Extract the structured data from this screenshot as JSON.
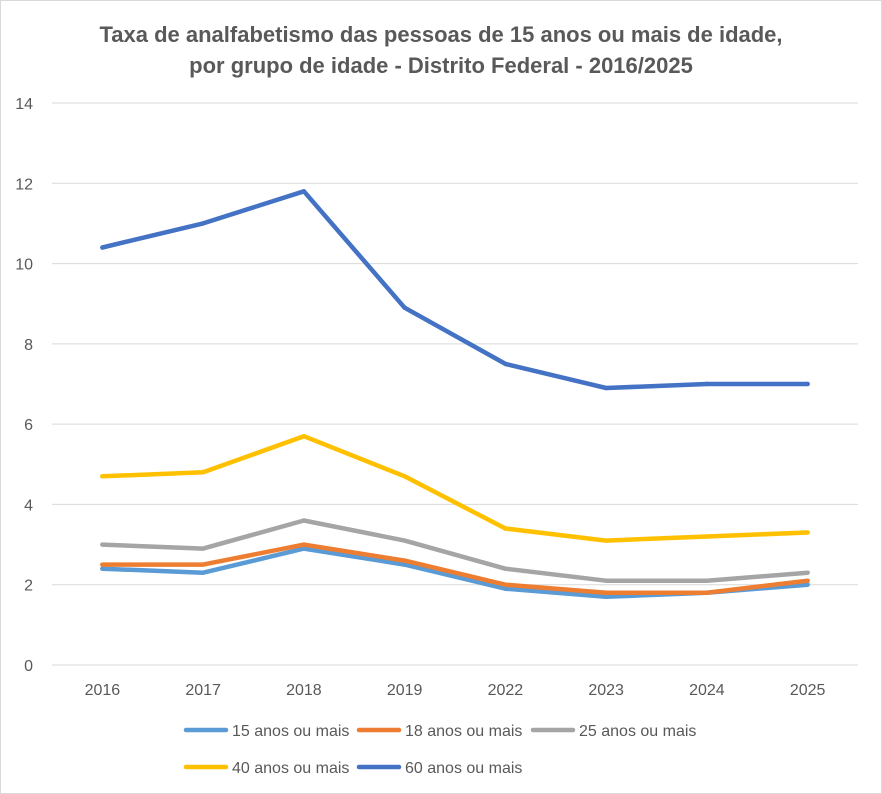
{
  "chart_data": {
    "type": "line",
    "title": "Taxa de analfabetismo das pessoas de 15 anos ou mais de idade,",
    "subtitle": "por grupo de idade - Distrito Federal - 2016/2025",
    "xlabel": "",
    "ylabel": "",
    "categories": [
      "2016",
      "2017",
      "2018",
      "2019",
      "2022",
      "2023",
      "2024",
      "2025"
    ],
    "ylim": [
      0,
      14
    ],
    "yticks": [
      0,
      2,
      4,
      6,
      8,
      10,
      12,
      14
    ],
    "grid": true,
    "legend_position": "bottom",
    "series": [
      {
        "name": "15 anos ou mais",
        "color": "#5b9bd5",
        "values": [
          2.4,
          2.3,
          2.9,
          2.5,
          1.9,
          1.7,
          1.8,
          2.0
        ]
      },
      {
        "name": "18 anos ou mais",
        "color": "#ed7d31",
        "values": [
          2.5,
          2.5,
          3.0,
          2.6,
          2.0,
          1.8,
          1.8,
          2.1
        ]
      },
      {
        "name": "25 anos ou mais",
        "color": "#a5a5a5",
        "values": [
          3.0,
          2.9,
          3.6,
          3.1,
          2.4,
          2.1,
          2.1,
          2.3
        ]
      },
      {
        "name": "40 anos ou mais",
        "color": "#ffc000",
        "values": [
          4.7,
          4.8,
          5.7,
          4.7,
          3.4,
          3.1,
          3.2,
          3.3
        ]
      },
      {
        "name": "60 anos ou mais",
        "color": "#4472c4",
        "values": [
          10.4,
          11.0,
          11.8,
          8.9,
          7.5,
          6.9,
          7.0,
          7.0
        ]
      }
    ]
  }
}
